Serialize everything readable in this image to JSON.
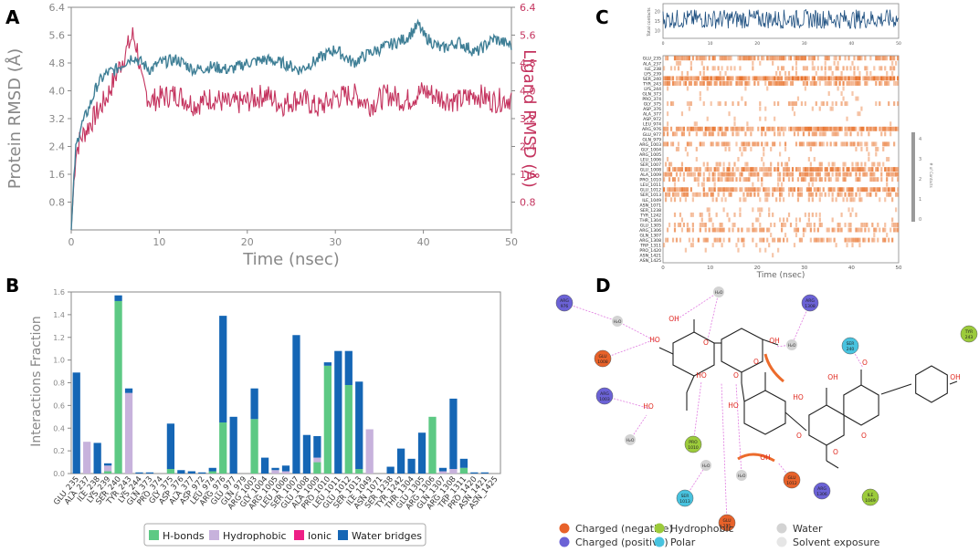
{
  "panel_labels": {
    "a": "A",
    "b": "B",
    "c": "C",
    "d": "D"
  },
  "colors": {
    "protein": "#3f7f96",
    "ligand": "#c4335e",
    "hbond": "#5dc984",
    "hydrophobic": "#c7b2dc",
    "ionic": "#ee1f86",
    "water": "#1566b5",
    "contacts_line": "#1d4f80",
    "heat": "#e9742e",
    "neg": "#e8622a",
    "pos": "#6b62d6",
    "hydrophobic_res": "#9ccb3b",
    "polar": "#48c3df",
    "water_res": "#d3d3d3"
  },
  "chart_data": [
    {
      "panel": "A",
      "type": "line",
      "xlabel": "Time (nsec)",
      "ylabel": "Protein RMSD (Å)",
      "y2label": "Ligand RMSD (Å)",
      "xlim": [
        0,
        50
      ],
      "xticks": [
        "0",
        "10",
        "20",
        "30",
        "40",
        "50"
      ],
      "ylim": [
        0,
        6.4
      ],
      "yticks": [
        "0.8",
        "1.6",
        "2.4",
        "3.2",
        "4.0",
        "4.8",
        "5.6",
        "6.4"
      ],
      "y2ticks": [
        "0.8",
        "1.6",
        "2.4",
        "3.2",
        "4.0",
        "4.8",
        "5.6",
        "6.4"
      ],
      "series": [
        {
          "name": "Protein RMSD",
          "axis": "left",
          "x": [
            0,
            0.5,
            1,
            2,
            3,
            4,
            5,
            6,
            7,
            8,
            9,
            10,
            12,
            14,
            16,
            18,
            20,
            22,
            24,
            26,
            28,
            30,
            32,
            34,
            36,
            38,
            39.5,
            40,
            42,
            44,
            46,
            48,
            50
          ],
          "y": [
            0,
            2.3,
            2.9,
            3.5,
            4.2,
            4.5,
            4.6,
            4.8,
            5.0,
            4.8,
            4.6,
            4.8,
            4.9,
            4.6,
            4.7,
            4.6,
            4.8,
            4.9,
            4.8,
            4.6,
            4.9,
            5.2,
            4.8,
            5.1,
            5.3,
            5.5,
            5.9,
            5.6,
            5.2,
            5.4,
            5.1,
            5.5,
            5.3
          ]
        },
        {
          "name": "Ligand RMSD",
          "axis": "right",
          "x": [
            0,
            0.5,
            1,
            2,
            3,
            4,
            5,
            6,
            7,
            7.5,
            8,
            9,
            10,
            12,
            14,
            16,
            18,
            20,
            22,
            24,
            26,
            28,
            30,
            32,
            34,
            36,
            38,
            40,
            42,
            44,
            46,
            48,
            50
          ],
          "y": [
            0,
            2.2,
            2.6,
            3.0,
            3.4,
            3.8,
            4.4,
            5.0,
            5.6,
            5.2,
            4.2,
            3.7,
            3.8,
            3.9,
            3.6,
            3.8,
            3.6,
            3.7,
            3.9,
            3.6,
            3.8,
            3.5,
            3.8,
            3.9,
            3.6,
            3.9,
            3.7,
            4.0,
            3.8,
            3.7,
            3.9,
            3.7,
            3.8
          ]
        }
      ]
    },
    {
      "panel": "B",
      "type": "bar",
      "ylabel": "Interactions Fraction",
      "ylim": [
        0,
        1.6
      ],
      "yticks": [
        "0.0",
        "0.2",
        "0.4",
        "0.6",
        "0.8",
        "1.0",
        "1.2",
        "1.4",
        "1.6"
      ],
      "categories": [
        "GLU_235",
        "ALA_237",
        "ILE_238",
        "LYS_239",
        "SER_240",
        "TYR_243",
        "LYS_244",
        "GLN_373",
        "PRO_374",
        "GLY_375",
        "ASP_376",
        "ALA_377",
        "ASP_972",
        "LEU_974",
        "ARG_976",
        "GLU_977",
        "GLN_979",
        "ARG_1003",
        "GLY_1004",
        "ARG_1005",
        "LEU_1006",
        "SER_1007",
        "GLU_1008",
        "ALA_1009",
        "PRO_1010",
        "LEU_1011",
        "GLU_1012",
        "SER_1013",
        "ILE_1049",
        "ASN_1071",
        "SER_1238",
        "TYR_1242",
        "THR_1304",
        "GLU_1305",
        "ARG_1306",
        "GLN_1307",
        "ARG_1308",
        "TRP_1311",
        "PRO_1420",
        "ASN_1421",
        "ASN_1425"
      ],
      "series": [
        {
          "name": "H-bonds",
          "values": [
            0,
            0,
            0,
            0.02,
            1.52,
            0,
            0,
            0,
            0,
            0.04,
            0,
            0,
            0,
            0.02,
            0.45,
            0,
            0,
            0.48,
            0,
            0,
            0,
            0,
            0,
            0.1,
            0.95,
            0,
            0.78,
            0.04,
            0,
            0,
            0,
            0,
            0,
            0,
            0.5,
            0,
            0,
            0.05,
            0,
            0,
            0
          ]
        },
        {
          "name": "Hydrophobic",
          "values": [
            0,
            0.28,
            0,
            0.05,
            0,
            0.71,
            0,
            0,
            0,
            0,
            0,
            0,
            0,
            0,
            0,
            0,
            0,
            0,
            0,
            0.03,
            0.02,
            0,
            0,
            0.04,
            0,
            0,
            0,
            0,
            0.39,
            0,
            0,
            0,
            0,
            0,
            0,
            0.02,
            0.04,
            0,
            0,
            0,
            0
          ]
        },
        {
          "name": "Ionic",
          "values": [
            0,
            0,
            0,
            0,
            0,
            0,
            0,
            0,
            0,
            0,
            0,
            0,
            0,
            0,
            0,
            0,
            0,
            0,
            0,
            0,
            0,
            0,
            0,
            0,
            0,
            0,
            0,
            0,
            0,
            0,
            0,
            0,
            0,
            0,
            0,
            0,
            0,
            0,
            0,
            0,
            0
          ]
        },
        {
          "name": "Water bridges",
          "values": [
            0.89,
            0,
            0.27,
            0.02,
            0.05,
            0.04,
            0.01,
            0.01,
            0,
            0.4,
            0.03,
            0.02,
            0.01,
            0.03,
            0.94,
            0.5,
            0,
            0.27,
            0.14,
            0.02,
            0.05,
            1.22,
            0.34,
            0.19,
            0.03,
            1.08,
            0.3,
            0.77,
            0,
            0,
            0.06,
            0.22,
            0.13,
            0.36,
            0,
            0.03,
            0.62,
            0.08,
            0.01,
            0.01,
            0
          ]
        }
      ],
      "legend": [
        "H-bonds",
        "Hydrophobic",
        "Ionic",
        "Water bridges"
      ]
    },
    {
      "panel": "C",
      "type": "heatmap",
      "top_ylabel": "Total contacts",
      "top_yticks": [
        "10",
        "15",
        "20"
      ],
      "xlabel": "Time (nsec)",
      "xticks": [
        "0",
        "10",
        "20",
        "30",
        "40",
        "50"
      ],
      "rows": [
        "GLU_235",
        "ALA_237",
        "ILE_238",
        "LYS_239",
        "SER_240",
        "TYR_243",
        "LYS_244",
        "GLN_373",
        "PRO_374",
        "GLY_375",
        "ASP_376",
        "ALA_377",
        "ASP_972",
        "LEU_974",
        "ARG_976",
        "GLU_977",
        "GLN_979",
        "ARG_1003",
        "GLY_1004",
        "ARG_1005",
        "LEU_1006",
        "SER_1007",
        "GLU_1008",
        "ALA_1009",
        "PRO_1010",
        "LEU_1011",
        "GLU_1012",
        "SER_1013",
        "ILE_1049",
        "ASN_1071",
        "SER_1238",
        "TYR_1242",
        "THR_1304",
        "GLU_1305",
        "ARG_1306",
        "GLN_1307",
        "ARG_1308",
        "TRP_1311",
        "PRO_1420",
        "ASN_1421",
        "ASN_1425"
      ],
      "row_intensity": [
        0.7,
        0.1,
        0.3,
        0.15,
        0.95,
        0.65,
        0.05,
        0.05,
        0.05,
        0.3,
        0.08,
        0.05,
        0.05,
        0.05,
        0.85,
        0.45,
        0,
        0.55,
        0.15,
        0.08,
        0.08,
        0.25,
        0.8,
        0.6,
        0.55,
        0.08,
        0.75,
        0.55,
        0.3,
        0,
        0.1,
        0.2,
        0.15,
        0.35,
        0.45,
        0.05,
        0.55,
        0.1,
        0.05,
        0.02,
        0
      ],
      "colorbar_ticks": [
        "0",
        "1",
        "2",
        "3",
        "4"
      ],
      "colorbar_label": "# of Contacts"
    }
  ],
  "panel_d": {
    "residues": [
      {
        "label": "ARG\n976",
        "type": "pos"
      },
      {
        "label": "GLU\n1008",
        "type": "neg"
      },
      {
        "label": "ARG\n1003",
        "type": "pos"
      },
      {
        "label": "ARG\n1308",
        "type": "pos"
      },
      {
        "label": "SER\n240",
        "type": "polar"
      },
      {
        "label": "TYR\n243",
        "type": "hydrophobic_res"
      },
      {
        "label": "PRO\n1010",
        "type": "hydrophobic_res"
      },
      {
        "label": "SER\n1013",
        "type": "polar"
      },
      {
        "label": "GLU\n235",
        "type": "neg"
      },
      {
        "label": "GLU\n1012",
        "type": "neg"
      },
      {
        "label": "ARG\n1306",
        "type": "pos"
      },
      {
        "label": "ILE\n1049",
        "type": "hydrophobic_res"
      }
    ],
    "legend": [
      {
        "label": "Charged (negative)",
        "type": "neg"
      },
      {
        "label": "Charged (positive)",
        "type": "pos"
      },
      {
        "label": "Hydrophobic",
        "type": "hydrophobic_res"
      },
      {
        "label": "Polar",
        "type": "polar"
      },
      {
        "label": "Water",
        "type": "water_res"
      },
      {
        "label": "Solvent exposure",
        "type": "solvent"
      }
    ],
    "water_label": "H₂O",
    "hydroxyl_label": "OH",
    "ho_label": "HO",
    "oxygen_label": "O"
  }
}
